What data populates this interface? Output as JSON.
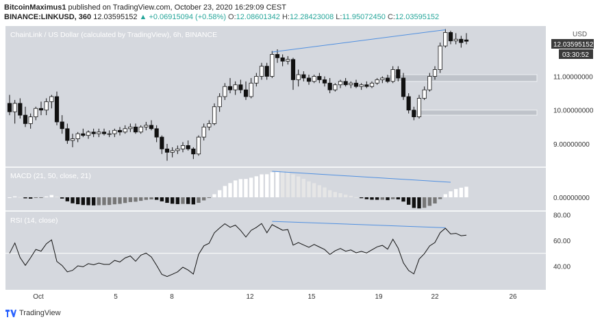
{
  "header": {
    "author": "BitcoinMaximus1",
    "published_text": "published on TradingView.com, October 23, 2020 16:29:09 CEST",
    "symbol": "BINANCE:LINKUSD, 360",
    "last": "12.03595152",
    "change": "▲ +0.06915094 (+0.58%)",
    "o_label": "O:",
    "o_value": "12.08601342",
    "h_label": "H:",
    "h_value": "12.28423008",
    "l_label": "L:",
    "l_value": "11.95072450",
    "c_label": "C:",
    "c_value": "12.03595152"
  },
  "footer": {
    "brand": "TradingView",
    "logo_icon": "tradingview-logo-icon"
  },
  "chart_data": [
    {
      "type": "candlestick",
      "title": "ChainLink / US Dollar (calculated by TradingView), 6h, BINANCE",
      "currency": "USD",
      "last_price_label": "12.03595152",
      "countdown_label": "03:30:52",
      "y_ticks": [
        9.0,
        10.0,
        11.0
      ],
      "y_tick_labels": [
        "9.00000000",
        "10.00000000",
        "11.00000000"
      ],
      "ylim": [
        8.35,
        12.45
      ],
      "x_ticks": [
        "Oct",
        "5",
        "8",
        "12",
        "15",
        "19",
        "22",
        "26"
      ],
      "ohlc": [
        [
          10.2,
          10.45,
          9.85,
          9.95
        ],
        [
          9.95,
          10.3,
          9.6,
          10.2
        ],
        [
          10.2,
          10.35,
          9.75,
          9.85
        ],
        [
          9.85,
          10.1,
          9.5,
          9.6
        ],
        [
          9.6,
          9.9,
          9.45,
          9.8
        ],
        [
          9.8,
          10.1,
          9.7,
          10.05
        ],
        [
          10.05,
          10.25,
          9.85,
          10.0
        ],
        [
          10.0,
          10.35,
          9.85,
          10.25
        ],
        [
          10.25,
          10.45,
          10.05,
          10.4
        ],
        [
          10.4,
          10.55,
          9.55,
          9.65
        ],
        [
          9.65,
          9.85,
          9.3,
          9.45
        ],
        [
          9.45,
          9.6,
          9.0,
          9.1
        ],
        [
          9.1,
          9.3,
          8.9,
          9.15
        ],
        [
          9.15,
          9.35,
          9.05,
          9.3
        ],
        [
          9.3,
          9.45,
          9.2,
          9.25
        ],
        [
          9.25,
          9.4,
          9.15,
          9.35
        ],
        [
          9.35,
          9.45,
          9.2,
          9.3
        ],
        [
          9.3,
          9.45,
          9.2,
          9.35
        ],
        [
          9.35,
          9.45,
          9.25,
          9.3
        ],
        [
          9.3,
          9.4,
          9.2,
          9.3
        ],
        [
          9.3,
          9.45,
          9.2,
          9.4
        ],
        [
          9.4,
          9.5,
          9.25,
          9.35
        ],
        [
          9.35,
          9.55,
          9.3,
          9.45
        ],
        [
          9.45,
          9.6,
          9.35,
          9.5
        ],
        [
          9.5,
          9.6,
          9.3,
          9.35
        ],
        [
          9.35,
          9.55,
          9.3,
          9.5
        ],
        [
          9.5,
          9.65,
          9.4,
          9.55
        ],
        [
          9.55,
          9.7,
          9.4,
          9.45
        ],
        [
          9.45,
          9.55,
          9.05,
          9.2
        ],
        [
          9.2,
          9.25,
          8.7,
          8.85
        ],
        [
          8.85,
          9.0,
          8.5,
          8.75
        ],
        [
          8.75,
          8.9,
          8.6,
          8.8
        ],
        [
          8.8,
          8.95,
          8.7,
          8.85
        ],
        [
          8.85,
          9.05,
          8.75,
          8.95
        ],
        [
          8.95,
          9.1,
          8.8,
          8.85
        ],
        [
          8.85,
          8.9,
          8.55,
          8.7
        ],
        [
          8.7,
          9.25,
          8.65,
          9.2
        ],
        [
          9.2,
          9.6,
          9.1,
          9.5
        ],
        [
          9.5,
          9.7,
          9.4,
          9.6
        ],
        [
          9.6,
          10.2,
          9.55,
          10.1
        ],
        [
          10.1,
          10.5,
          9.95,
          10.4
        ],
        [
          10.4,
          10.8,
          10.3,
          10.7
        ],
        [
          10.7,
          10.95,
          10.5,
          10.6
        ],
        [
          10.6,
          10.85,
          10.45,
          10.75
        ],
        [
          10.75,
          10.9,
          10.5,
          10.6
        ],
        [
          10.6,
          10.85,
          10.3,
          10.4
        ],
        [
          10.4,
          10.95,
          10.35,
          10.8
        ],
        [
          10.8,
          11.1,
          10.7,
          11.0
        ],
        [
          11.0,
          11.4,
          10.9,
          11.3
        ],
        [
          11.3,
          11.4,
          10.9,
          11.0
        ],
        [
          11.0,
          11.75,
          10.95,
          11.65
        ],
        [
          11.65,
          11.8,
          11.4,
          11.55
        ],
        [
          11.55,
          11.65,
          11.3,
          11.45
        ],
        [
          11.45,
          11.6,
          11.35,
          11.5
        ],
        [
          11.5,
          11.55,
          10.6,
          10.9
        ],
        [
          10.9,
          11.2,
          10.7,
          11.05
        ],
        [
          11.05,
          11.15,
          10.85,
          10.95
        ],
        [
          10.95,
          11.05,
          10.75,
          10.85
        ],
        [
          10.85,
          11.05,
          10.8,
          11.0
        ],
        [
          11.0,
          11.1,
          10.8,
          10.9
        ],
        [
          10.9,
          11.0,
          10.7,
          10.8
        ],
        [
          10.8,
          10.95,
          10.5,
          10.6
        ],
        [
          10.6,
          10.8,
          10.55,
          10.75
        ],
        [
          10.75,
          10.9,
          10.65,
          10.85
        ],
        [
          10.85,
          10.95,
          10.7,
          10.75
        ],
        [
          10.75,
          10.85,
          10.65,
          10.8
        ],
        [
          10.8,
          10.9,
          10.65,
          10.7
        ],
        [
          10.7,
          10.8,
          10.6,
          10.75
        ],
        [
          10.75,
          10.85,
          10.65,
          10.7
        ],
        [
          10.7,
          10.85,
          10.65,
          10.8
        ],
        [
          10.8,
          10.95,
          10.75,
          10.9
        ],
        [
          10.9,
          11.0,
          10.8,
          10.95
        ],
        [
          10.95,
          11.05,
          10.8,
          10.85
        ],
        [
          10.85,
          11.3,
          10.8,
          11.2
        ],
        [
          11.2,
          11.3,
          10.85,
          10.95
        ],
        [
          10.95,
          11.1,
          10.3,
          10.4
        ],
        [
          10.4,
          10.5,
          9.9,
          10.0
        ],
        [
          10.0,
          10.1,
          9.7,
          9.8
        ],
        [
          9.8,
          10.45,
          9.75,
          10.35
        ],
        [
          10.35,
          10.7,
          10.3,
          10.6
        ],
        [
          10.6,
          11.1,
          10.55,
          11.0
        ],
        [
          11.0,
          11.3,
          10.9,
          11.2
        ],
        [
          11.2,
          12.0,
          11.1,
          11.9
        ],
        [
          11.9,
          12.4,
          11.85,
          12.3
        ],
        [
          12.3,
          12.35,
          11.95,
          12.05
        ],
        [
          12.05,
          12.28,
          11.95,
          12.1
        ],
        [
          12.1,
          12.2,
          11.85,
          12.0
        ],
        [
          12.08,
          12.28,
          11.95,
          12.04
        ]
      ],
      "zones": [
        {
          "from": 10.85,
          "to": 11.05
        },
        {
          "from": 9.85,
          "to": 10.0
        }
      ]
    },
    {
      "type": "histogram",
      "title": "MACD (21, 50, close, 21)",
      "y_tick_labels": [
        "0.00000000"
      ],
      "ylim": [
        -0.18,
        0.42
      ]
    },
    {
      "type": "line",
      "title": "RSI (14, close)",
      "y_ticks": [
        40,
        60,
        80
      ],
      "y_tick_labels": [
        "40.00",
        "60.00",
        "80.00"
      ],
      "ylim": [
        22,
        82
      ]
    }
  ]
}
